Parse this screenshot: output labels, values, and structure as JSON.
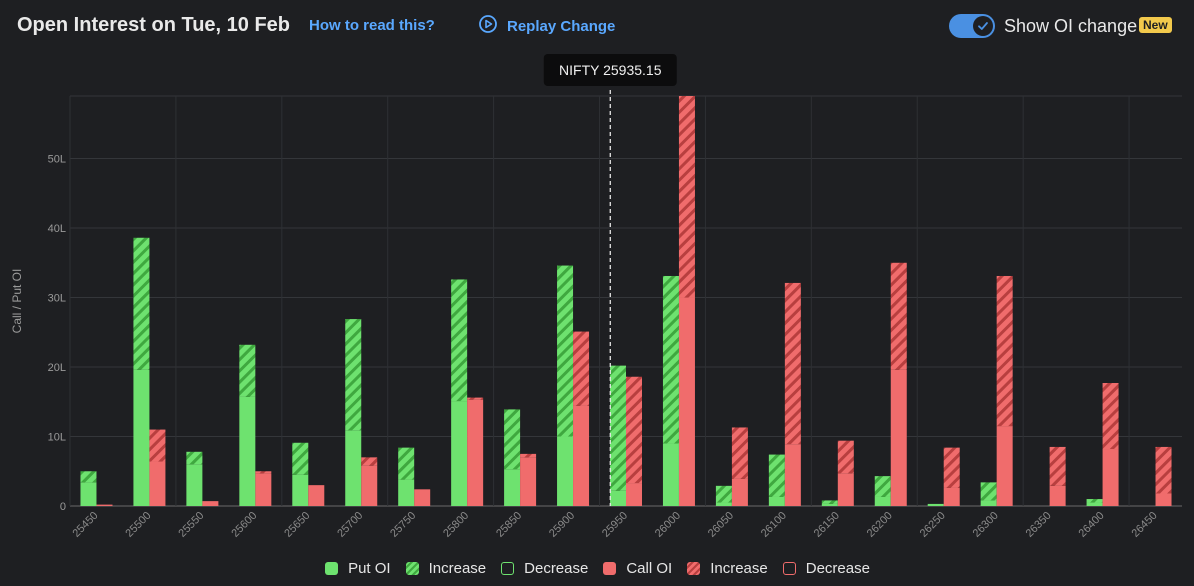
{
  "header": {
    "title": "Open Interest on Tue, 10 Feb",
    "help_link": "How to read this?",
    "replay_label": "Replay Change",
    "toggle_label": "Show OI change",
    "new_badge": "New",
    "toggle_on": true
  },
  "colors": {
    "put": "#6ee26f",
    "put_dark": "#3fa83f",
    "call": "#f06c6c",
    "call_dark": "#b83f3f",
    "accent": "#4a90e2",
    "badge": "#f2c94c",
    "background": "#1e1f22"
  },
  "chart_data": {
    "type": "bar",
    "ylabel": "Call / Put OI",
    "ylim": [
      0,
      59
    ],
    "yticks": [
      0,
      10,
      20,
      30,
      40,
      50
    ],
    "ytick_labels": [
      "0",
      "10L",
      "20L",
      "30L",
      "40L",
      "50L"
    ],
    "grid": true,
    "units": "lakh",
    "spot_label": "NIFTY 25935.15",
    "spot_value": 25935.15,
    "categories": [
      "25450",
      "25500",
      "25550",
      "25600",
      "25650",
      "25700",
      "25750",
      "25800",
      "25850",
      "25900",
      "25950",
      "26000",
      "26050",
      "26100",
      "26150",
      "26200",
      "26250",
      "26300",
      "26350",
      "26400",
      "26450"
    ],
    "series": [
      {
        "name": "Put OI",
        "values": [
          5.0,
          38.6,
          7.8,
          23.2,
          9.1,
          26.9,
          8.4,
          32.6,
          13.9,
          34.6,
          20.2,
          33.1,
          2.9,
          7.4,
          0.8,
          4.3,
          0.3,
          3.4,
          0.0,
          1.0,
          0.0
        ]
      },
      {
        "name": "Increase",
        "values": [
          1.6,
          19.0,
          1.8,
          7.5,
          4.6,
          16.0,
          4.6,
          17.5,
          8.6,
          24.6,
          18.0,
          24.1,
          2.4,
          6.1,
          0.5,
          3.0,
          0.0,
          2.6,
          0.0,
          0.5,
          0.0
        ]
      },
      {
        "name": "Decrease",
        "values": [
          0,
          0,
          0,
          0,
          0,
          0,
          0,
          0,
          0,
          0,
          0,
          0,
          0,
          0,
          0,
          0,
          0,
          0,
          0,
          0,
          0
        ]
      },
      {
        "name": "Call OI",
        "values": [
          0.2,
          11.0,
          0.7,
          5.0,
          3.0,
          7.0,
          2.4,
          15.6,
          7.5,
          25.1,
          18.6,
          59.0,
          11.3,
          32.1,
          9.4,
          35.0,
          8.4,
          33.1,
          8.5,
          17.7,
          8.5
        ]
      },
      {
        "name": "Increase",
        "values": [
          0.0,
          4.6,
          0.0,
          0.3,
          0.0,
          1.2,
          0.0,
          0.3,
          0.5,
          10.7,
          15.3,
          29.0,
          7.4,
          23.2,
          4.7,
          15.4,
          5.8,
          21.6,
          5.6,
          9.5,
          6.7
        ]
      },
      {
        "name": "Decrease",
        "values": [
          0,
          0,
          0,
          0,
          0,
          0,
          0,
          0,
          0,
          0,
          0,
          0,
          0,
          0,
          0,
          0,
          0,
          0,
          0,
          0,
          0
        ]
      }
    ],
    "legend_position": "bottom-center"
  },
  "legend": {
    "items": [
      {
        "label": "Put OI",
        "style": "solid",
        "color": "#6ee26f"
      },
      {
        "label": "Increase",
        "style": "hatched",
        "color": "#6ee26f"
      },
      {
        "label": "Decrease",
        "style": "outline",
        "color": "#6ee26f"
      },
      {
        "label": "Call OI",
        "style": "solid",
        "color": "#f06c6c"
      },
      {
        "label": "Increase",
        "style": "hatched",
        "color": "#f06c6c"
      },
      {
        "label": "Decrease",
        "style": "outline",
        "color": "#f06c6c"
      }
    ]
  }
}
